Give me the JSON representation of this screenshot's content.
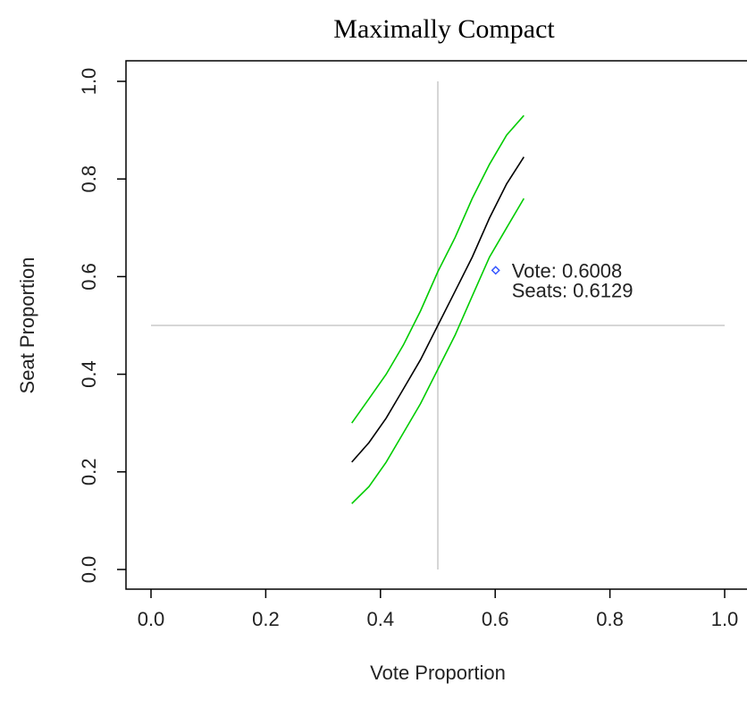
{
  "chart_data": {
    "type": "line",
    "title": "Maximally Compact",
    "xlabel": "Vote Proportion",
    "ylabel": "Seat Proportion",
    "xlim": [
      0.0,
      1.0
    ],
    "ylim": [
      0.0,
      1.0
    ],
    "xticks": [
      "0.0",
      "0.2",
      "0.4",
      "0.6",
      "0.8",
      "1.0"
    ],
    "yticks": [
      "0.0",
      "0.2",
      "0.4",
      "0.6",
      "0.8",
      "1.0"
    ],
    "reference_lines": {
      "x": 0.5,
      "y": 0.5,
      "color": "#c8c8c8"
    },
    "series": [
      {
        "color": "#00cc00",
        "x": [
          0.35,
          0.38,
          0.41,
          0.44,
          0.47,
          0.5,
          0.53,
          0.56,
          0.59,
          0.62,
          0.65
        ],
        "y": [
          0.3,
          0.35,
          0.4,
          0.46,
          0.53,
          0.61,
          0.68,
          0.76,
          0.83,
          0.89,
          0.93
        ]
      },
      {
        "color": "#000000",
        "x": [
          0.35,
          0.38,
          0.41,
          0.44,
          0.47,
          0.5,
          0.53,
          0.56,
          0.59,
          0.62,
          0.65
        ],
        "y": [
          0.22,
          0.26,
          0.31,
          0.37,
          0.43,
          0.5,
          0.57,
          0.64,
          0.72,
          0.79,
          0.845
        ]
      },
      {
        "color": "#00cc00",
        "x": [
          0.35,
          0.38,
          0.41,
          0.44,
          0.47,
          0.5,
          0.53,
          0.56,
          0.59,
          0.62,
          0.65
        ],
        "y": [
          0.135,
          0.17,
          0.22,
          0.28,
          0.34,
          0.41,
          0.48,
          0.56,
          0.64,
          0.7,
          0.76
        ]
      }
    ],
    "points": [
      {
        "x": 0.6008,
        "y": 0.6129,
        "color": "#3355ff",
        "marker": "diamond-open"
      }
    ],
    "annotation": {
      "line1": "Vote: 0.6008",
      "line2": "Seats: 0.6129"
    },
    "grid": false,
    "legend": "none"
  }
}
